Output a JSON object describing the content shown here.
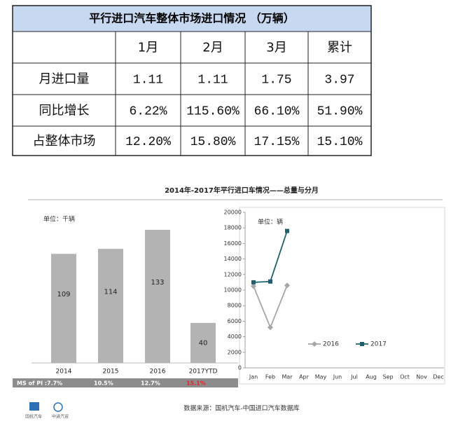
{
  "table": {
    "title": "平行进口汽车整体市场进口情况 （万辆）",
    "header": [
      "",
      "1月",
      "2月",
      "3月",
      "累计"
    ],
    "rows": [
      [
        "月进口量",
        "1.11",
        "1.11",
        "1.75",
        "3.97"
      ],
      [
        "同比增长",
        "6.22%",
        "115.60%",
        "66.10%",
        "51.90%"
      ],
      [
        "占整体市场",
        "12.20%",
        "15.80%",
        "17.15%",
        "15.10%"
      ]
    ],
    "title_color": "#c6d9f0"
  },
  "figure_title": "2014年-2017年平行进口车情况——总量与分月",
  "source": "数据来源：国机汽车-中国进口汽车数据库",
  "logos": [
    "国机汽车",
    "中进汽贸"
  ],
  "chart_data": [
    {
      "type": "bar",
      "unit": "单位：千辆",
      "categories": [
        "2014",
        "2015",
        "2016",
        "2017YTD"
      ],
      "values": [
        109,
        114,
        133,
        40
      ],
      "color": "#b3b3b3",
      "market_share": {
        "label": "MS of PI :",
        "values": [
          7.7,
          10.5,
          12.7,
          15.1
        ],
        "value_labels": [
          "7.7%",
          "10.5%",
          "12.7%",
          "15.1%"
        ],
        "colors": [
          "#ffffff",
          "#ffffff",
          "#ffffff",
          "#e8202a"
        ]
      }
    },
    {
      "type": "line",
      "unit": "单位：辆",
      "categories": [
        "Jan",
        "Feb",
        "Mar",
        "Apr",
        "May",
        "Jun",
        "Jul",
        "Aug",
        "Sep",
        "Oct",
        "Nov",
        "Dec"
      ],
      "series": [
        {
          "name": "2016",
          "color": "#a6a6a6",
          "marker": "diamond",
          "values": [
            10500,
            5200,
            10600,
            null,
            null,
            null,
            null,
            null,
            null,
            null,
            null,
            null
          ]
        },
        {
          "name": "2017",
          "color": "#1f5f6b",
          "marker": "square",
          "values": [
            11000,
            11100,
            17600,
            null,
            null,
            null,
            null,
            null,
            null,
            null,
            null,
            null
          ]
        }
      ],
      "ylim": [
        0,
        20000
      ],
      "yticks": [
        0,
        2000,
        4000,
        6000,
        8000,
        10000,
        12000,
        14000,
        16000,
        18000,
        20000
      ]
    }
  ]
}
